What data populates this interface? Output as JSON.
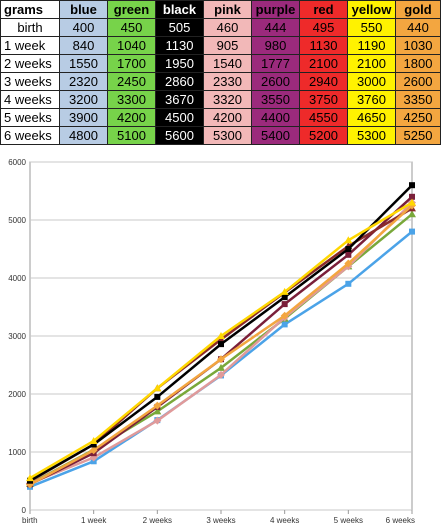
{
  "table": {
    "corner": "grams",
    "columns": [
      {
        "label": "blue",
        "color": "#b8cce4"
      },
      {
        "label": "green",
        "color": "#77d34a"
      },
      {
        "label": "black",
        "color": "#000000"
      },
      {
        "label": "pink",
        "color": "#f2b8b8"
      },
      {
        "label": "purple",
        "color": "#9b2a7c"
      },
      {
        "label": "red",
        "color": "#ee2a2a"
      },
      {
        "label": "yellow",
        "color": "#fff200"
      },
      {
        "label": "gold",
        "color": "#f3a640"
      }
    ],
    "rows": [
      {
        "label": "birth",
        "values": [
          "400",
          "450",
          "505",
          "460",
          "444",
          "495",
          "550",
          "440"
        ]
      },
      {
        "label": "1 week",
        "values": [
          "840",
          "1040",
          "1130",
          "905",
          "980",
          "1130",
          "1190",
          "1030"
        ]
      },
      {
        "label": "2 weeks",
        "values": [
          "1550",
          "1700",
          "1950",
          "1540",
          "1777",
          "2100",
          "2100",
          "1800"
        ]
      },
      {
        "label": "3 weeks",
        "values": [
          "2320",
          "2450",
          "2860",
          "2330",
          "2600",
          "2940",
          "3000",
          "2600"
        ]
      },
      {
        "label": "4 weeks",
        "values": [
          "3200",
          "3300",
          "3670",
          "3320",
          "3550",
          "3750",
          "3760",
          "3350"
        ]
      },
      {
        "label": "5 weeks",
        "values": [
          "3900",
          "4200",
          "4500",
          "4200",
          "4400",
          "4550",
          "4650",
          "4250"
        ]
      },
      {
        "label": "6 weeks",
        "values": [
          "4800",
          "5100",
          "5600",
          "5300",
          "5400",
          "5200",
          "5300",
          "5250"
        ]
      }
    ]
  },
  "chart_data": {
    "type": "line",
    "categories": [
      "birth",
      "1 week",
      "2 weeks",
      "3 weeks",
      "4 weeks",
      "5 weeks",
      "6 weeks"
    ],
    "ylim": [
      0,
      6000
    ],
    "yticks": [
      0,
      1000,
      2000,
      3000,
      4000,
      5000,
      6000
    ],
    "grid": true,
    "legend": "none",
    "series": [
      {
        "color": "#4ba3e8",
        "values": [
          400,
          840,
          1550,
          2320,
          3200,
          3900,
          4800
        ]
      },
      {
        "color": "#79a83a",
        "values": [
          450,
          1040,
          1700,
          2450,
          3300,
          4200,
          5100
        ]
      },
      {
        "color": "#e09a9a",
        "values": [
          460,
          905,
          1540,
          2330,
          3320,
          4200,
          5300
        ]
      },
      {
        "color": "#7a1f3a",
        "values": [
          444,
          980,
          1777,
          2600,
          3550,
          4400,
          5400
        ]
      },
      {
        "color": "#8a2a2a",
        "values": [
          495,
          1130,
          2100,
          2940,
          3750,
          4550,
          5200
        ]
      },
      {
        "color": "#f3a640",
        "values": [
          440,
          1030,
          1800,
          2600,
          3350,
          4250,
          5250
        ]
      },
      {
        "color": "#000000",
        "values": [
          505,
          1130,
          1950,
          2860,
          3670,
          4500,
          5600
        ]
      },
      {
        "color": "#ffd700",
        "values": [
          550,
          1190,
          2100,
          3000,
          3760,
          4650,
          5300
        ]
      }
    ]
  }
}
